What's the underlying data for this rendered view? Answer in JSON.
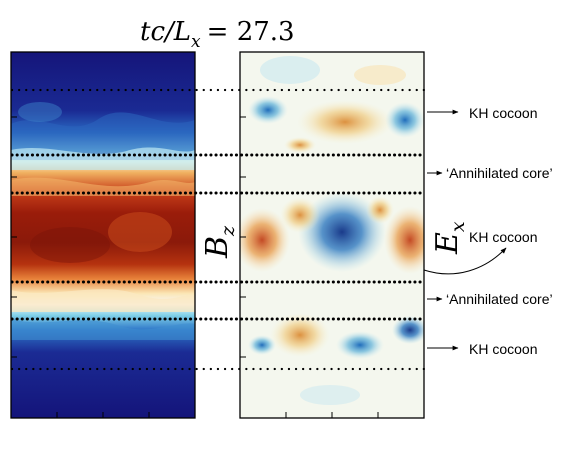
{
  "figure": {
    "title_prefix": "tc/L",
    "title_sub": "x",
    "title_value": "= 27.3",
    "left_panel": {
      "label_main": "B",
      "label_sub": "z",
      "colormap": "dark-blue-to-dark-red"
    },
    "right_panel": {
      "label_main": "E",
      "label_sub": "x",
      "colormap": "blue-white-red-diverging"
    },
    "annotations": [
      {
        "text": "KH cocoon",
        "arrow": "straight"
      },
      {
        "text": "‘Annihilated core’",
        "arrow": "straight"
      },
      {
        "text": "KH cocoon",
        "arrow": "curved"
      },
      {
        "text": "‘Annihilated core’",
        "arrow": "straight"
      },
      {
        "text": "KH cocoon",
        "arrow": "straight"
      }
    ],
    "colors": {
      "deep_blue": "#1a1a7e",
      "dark_red": "#8b1a0a",
      "cyan": "#49b6d6",
      "white": "#ffffff",
      "orange": "#e39a3a"
    }
  }
}
